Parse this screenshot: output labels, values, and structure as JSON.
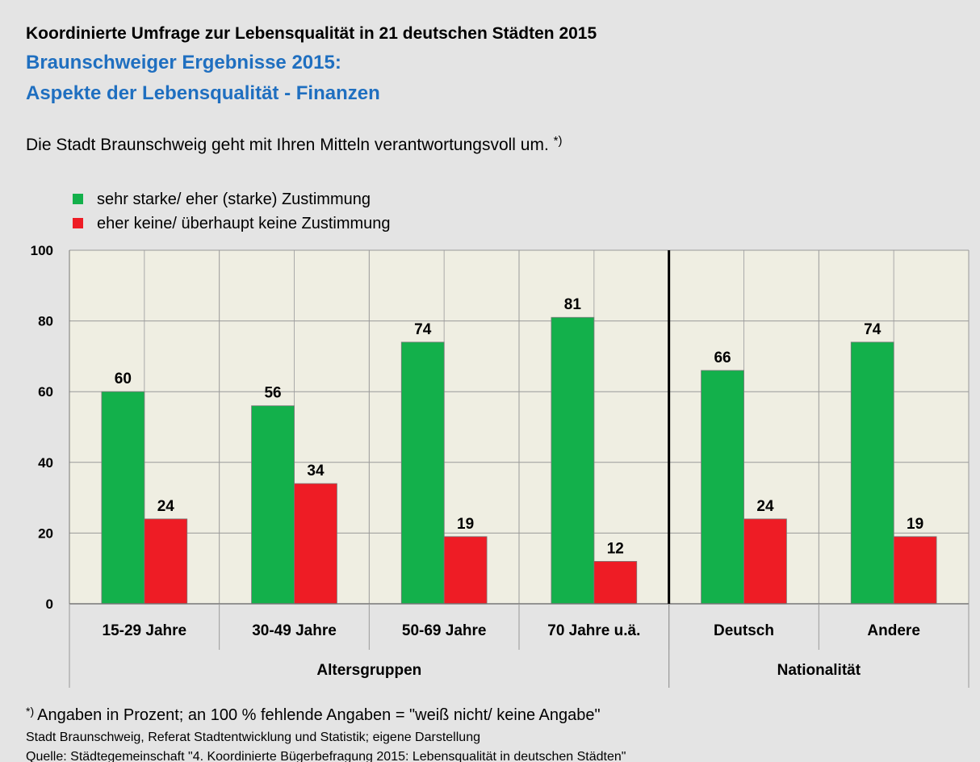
{
  "chart_data": {
    "type": "bar",
    "title": "Koordinierte Umfrage zur Lebensqualität in 21 deutschen Städten 2015",
    "subtitle": [
      "Braunschweiger Ergebnisse 2015:",
      "Aspekte der Lebensqualität - Finanzen"
    ],
    "question": "Die Stadt Braunschweig geht mit Ihren Mitteln verantwortungsvoll um.",
    "footnote_marker": "*)",
    "categories": [
      "15-29 Jahre",
      "30-49 Jahre",
      "50-69 Jahre",
      "70 Jahre u.ä.",
      "Deutsch",
      "Andere"
    ],
    "groups": [
      {
        "name": "Altersgruppen",
        "count": 4
      },
      {
        "name": "Nationalität",
        "count": 2
      }
    ],
    "series": [
      {
        "name": "sehr starke/ eher (starke) Zustimmung",
        "color": "#13b04b",
        "values": [
          60,
          56,
          74,
          81,
          66,
          74
        ]
      },
      {
        "name": "eher keine/ überhaupt keine Zustimmung",
        "color": "#ee1c25",
        "values": [
          24,
          34,
          19,
          12,
          24,
          19
        ]
      }
    ],
    "ylim": [
      0,
      100
    ],
    "yticks": [
      0,
      20,
      40,
      60,
      80,
      100
    ],
    "grid": true,
    "footnotes": [
      "Angaben in Prozent; an 100 % fehlende Angaben = \"weiß nicht/ keine Angabe\"",
      "Stadt Braunschweig, Referat Stadtentwicklung und Statistik; eigene Darstellung",
      "Quelle: Städtegemeinschaft \"4. Koordinierte Bügerbefragung 2015: Lebensqualität in deutschen Städten\""
    ]
  }
}
